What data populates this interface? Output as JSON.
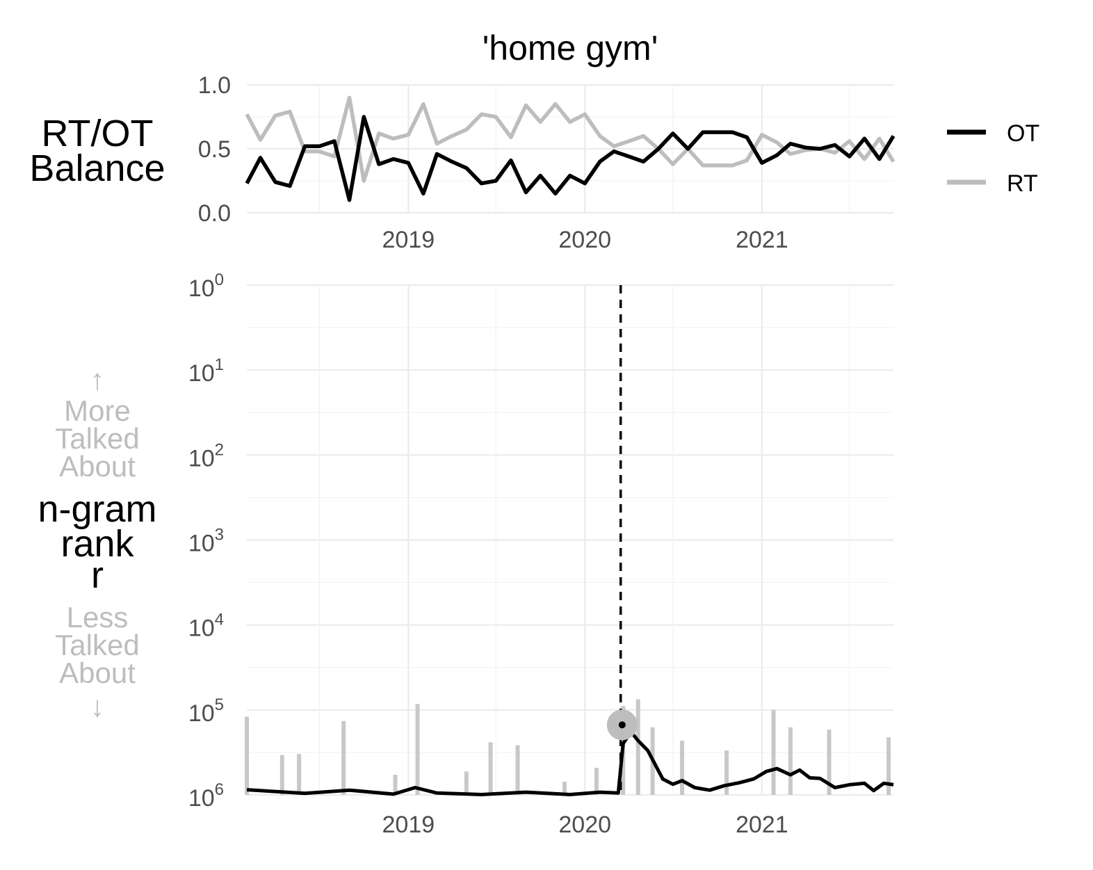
{
  "chart_data": [
    {
      "type": "line",
      "title": "'home gym'",
      "ylabel": [
        "RT/OT",
        "Balance"
      ],
      "xlim": [
        "2018-02-01",
        "2021-09-30"
      ],
      "ylim": [
        0,
        1
      ],
      "yticks": [
        "0.0",
        "0.5",
        "1.0"
      ],
      "xticks": [
        "2019",
        "2020",
        "2021"
      ],
      "grid": true,
      "legend": "right",
      "series": [
        {
          "name": "OT",
          "color": "#000000",
          "x": [
            "2018-02-01",
            "2018-03-01",
            "2018-04-01",
            "2018-05-01",
            "2018-06-01",
            "2018-07-01",
            "2018-08-01",
            "2018-09-01",
            "2018-10-01",
            "2018-11-01",
            "2018-12-01",
            "2019-01-01",
            "2019-02-01",
            "2019-03-01",
            "2019-04-01",
            "2019-05-01",
            "2019-06-01",
            "2019-07-01",
            "2019-08-01",
            "2019-09-01",
            "2019-10-01",
            "2019-11-01",
            "2019-12-01",
            "2020-01-01",
            "2020-02-01",
            "2020-03-01",
            "2020-04-01",
            "2020-05-01",
            "2020-06-01",
            "2020-07-01",
            "2020-08-01",
            "2020-09-01",
            "2020-10-01",
            "2020-11-01",
            "2020-12-01",
            "2021-01-01",
            "2021-02-01",
            "2021-03-01",
            "2021-04-01",
            "2021-05-01",
            "2021-06-01",
            "2021-07-01",
            "2021-08-01",
            "2021-09-01",
            "2021-09-30"
          ],
          "values": [
            0.23,
            0.43,
            0.24,
            0.21,
            0.52,
            0.52,
            0.56,
            0.1,
            0.75,
            0.38,
            0.42,
            0.39,
            0.15,
            0.46,
            0.4,
            0.35,
            0.23,
            0.25,
            0.41,
            0.16,
            0.29,
            0.15,
            0.29,
            0.23,
            0.4,
            0.48,
            0.44,
            0.4,
            0.5,
            0.62,
            0.5,
            0.63,
            0.63,
            0.63,
            0.59,
            0.39,
            0.45,
            0.54,
            0.51,
            0.5,
            0.53,
            0.44,
            0.58,
            0.42,
            0.6
          ]
        },
        {
          "name": "RT",
          "color": "#bdbdbd",
          "x": [
            "2018-02-01",
            "2018-03-01",
            "2018-04-01",
            "2018-05-01",
            "2018-06-01",
            "2018-07-01",
            "2018-08-01",
            "2018-09-01",
            "2018-10-01",
            "2018-11-01",
            "2018-12-01",
            "2019-01-01",
            "2019-02-01",
            "2019-03-01",
            "2019-04-01",
            "2019-05-01",
            "2019-06-01",
            "2019-07-01",
            "2019-08-01",
            "2019-09-01",
            "2019-10-01",
            "2019-11-01",
            "2019-12-01",
            "2020-01-01",
            "2020-02-01",
            "2020-03-01",
            "2020-04-01",
            "2020-05-01",
            "2020-06-01",
            "2020-07-01",
            "2020-08-01",
            "2020-09-01",
            "2020-10-01",
            "2020-11-01",
            "2020-12-01",
            "2021-01-01",
            "2021-02-01",
            "2021-03-01",
            "2021-04-01",
            "2021-05-01",
            "2021-06-01",
            "2021-07-01",
            "2021-08-01",
            "2021-09-01",
            "2021-09-30"
          ],
          "values": [
            0.77,
            0.57,
            0.76,
            0.79,
            0.48,
            0.48,
            0.44,
            0.9,
            0.25,
            0.62,
            0.58,
            0.61,
            0.85,
            0.54,
            0.6,
            0.65,
            0.77,
            0.75,
            0.59,
            0.84,
            0.71,
            0.85,
            0.71,
            0.77,
            0.6,
            0.52,
            0.56,
            0.6,
            0.5,
            0.38,
            0.5,
            0.37,
            0.37,
            0.37,
            0.41,
            0.61,
            0.55,
            0.46,
            0.49,
            0.5,
            0.47,
            0.56,
            0.42,
            0.58,
            0.4
          ]
        }
      ]
    },
    {
      "type": "line",
      "ylabel": [
        "n-gram",
        "rank",
        "r"
      ],
      "ylabel_top": [
        "↑",
        "More",
        "Talked",
        "About"
      ],
      "ylabel_bottom": [
        "Less",
        "Talked",
        "About",
        "↓"
      ],
      "yscale": "log",
      "yreversed": true,
      "ylim": [
        1,
        1000000
      ],
      "ytick_exponents": [
        "0",
        "1",
        "2",
        "3",
        "4",
        "5",
        "6"
      ],
      "xticks": [
        "2019",
        "2020",
        "2021"
      ],
      "xlim": [
        "2018-02-01",
        "2021-09-30"
      ],
      "grid": true,
      "vline": "2020-03-15",
      "marker": {
        "x": "2020-03-18",
        "rank": 150000
      },
      "series": [
        {
          "name": "OT",
          "color": "#000000",
          "x": [
            "2018-02-01",
            "2018-06-01",
            "2018-09-01",
            "2018-12-01",
            "2019-01-15",
            "2019-03-01",
            "2019-06-01",
            "2019-09-01",
            "2019-12-01",
            "2020-02-01",
            "2020-03-10",
            "2020-03-20",
            "2020-04-05",
            "2020-04-20",
            "2020-05-10",
            "2020-06-10",
            "2020-07-01",
            "2020-07-20",
            "2020-08-15",
            "2020-09-15",
            "2020-10-15",
            "2020-11-15",
            "2020-12-15",
            "2021-01-10",
            "2021-02-01",
            "2021-03-01",
            "2021-03-20",
            "2021-04-10",
            "2021-05-01",
            "2021-06-01",
            "2021-07-01",
            "2021-08-01",
            "2021-08-20",
            "2021-09-10",
            "2021-09-30"
          ],
          "values": [
            870000,
            960000,
            880000,
            980000,
            820000,
            950000,
            990000,
            930000,
            990000,
            930000,
            950000,
            250000,
            180000,
            230000,
            300000,
            650000,
            750000,
            680000,
            820000,
            880000,
            780000,
            720000,
            650000,
            530000,
            490000,
            580000,
            510000,
            630000,
            640000,
            820000,
            760000,
            730000,
            890000,
            730000,
            760000
          ]
        },
        {
          "name": "RT",
          "color": "#c8c8c8",
          "spikes": [
            {
              "x": "2018-02-01",
              "rank": 120000
            },
            {
              "x": "2018-04-15",
              "rank": 340000
            },
            {
              "x": "2018-05-20",
              "rank": 330000
            },
            {
              "x": "2018-08-20",
              "rank": 135000
            },
            {
              "x": "2018-12-05",
              "rank": 580000
            },
            {
              "x": "2019-01-20",
              "rank": 85000
            },
            {
              "x": "2019-05-01",
              "rank": 530000
            },
            {
              "x": "2019-06-20",
              "rank": 240000
            },
            {
              "x": "2019-08-15",
              "rank": 260000
            },
            {
              "x": "2019-11-20",
              "rank": 700000
            },
            {
              "x": "2020-01-25",
              "rank": 480000
            },
            {
              "x": "2020-03-20",
              "rank": 90000
            },
            {
              "x": "2020-04-20",
              "rank": 75000
            },
            {
              "x": "2020-05-20",
              "rank": 160000
            },
            {
              "x": "2020-07-20",
              "rank": 230000
            },
            {
              "x": "2020-10-20",
              "rank": 300000
            },
            {
              "x": "2021-01-25",
              "rank": 100000
            },
            {
              "x": "2021-03-01",
              "rank": 160000
            },
            {
              "x": "2021-05-20",
              "rank": 170000
            },
            {
              "x": "2021-09-20",
              "rank": 210000
            }
          ]
        }
      ]
    }
  ]
}
